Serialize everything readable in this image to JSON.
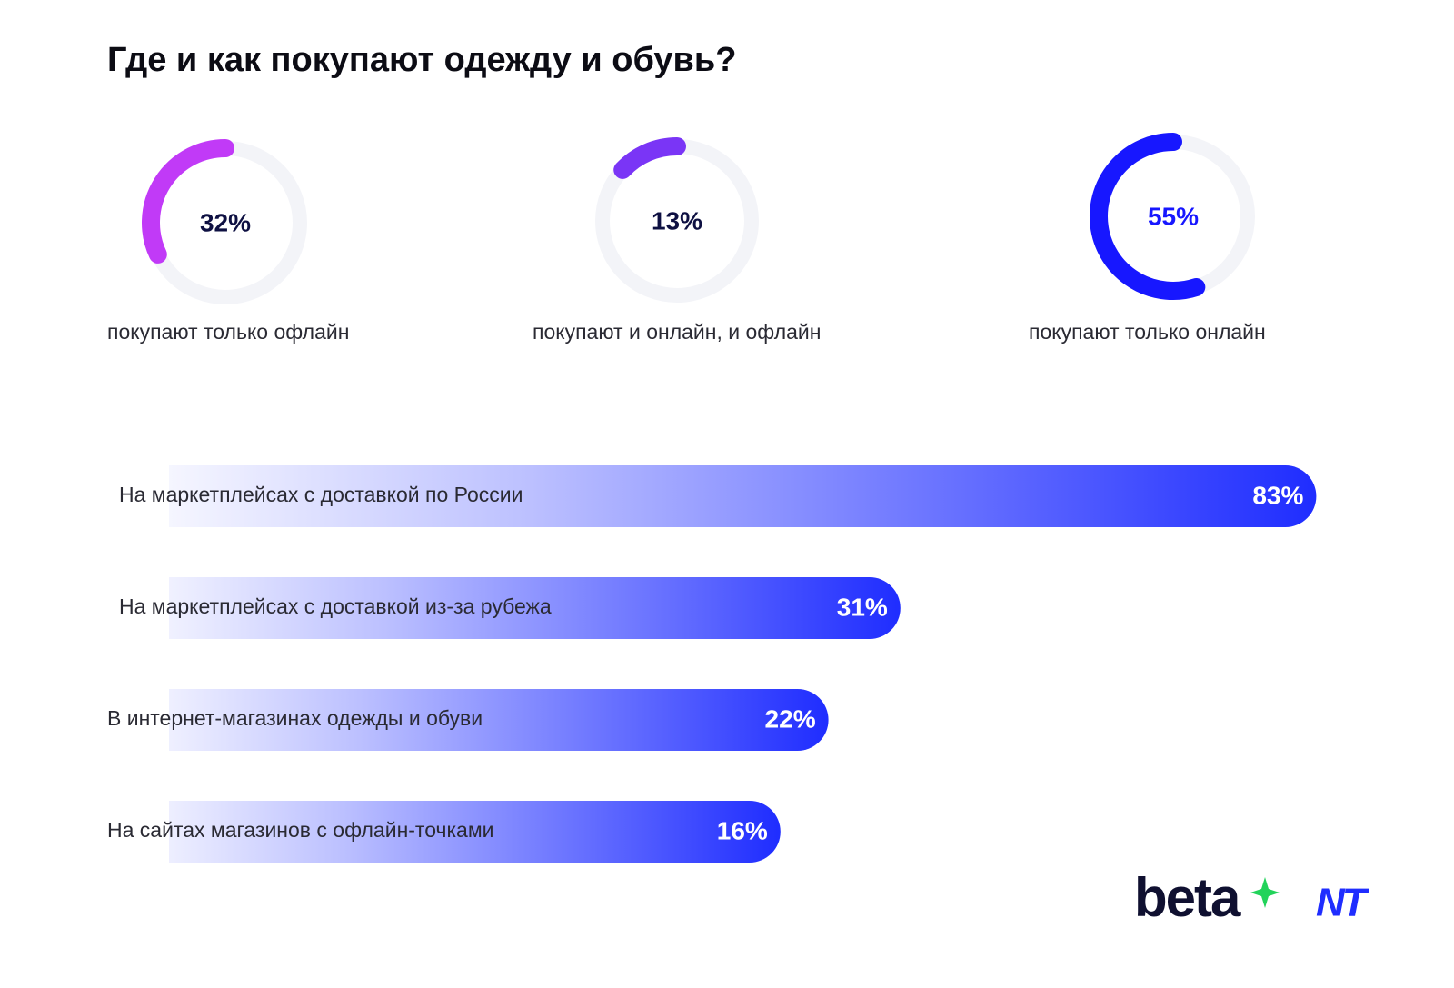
{
  "title": "Где и как покупают одежду и обувь?",
  "chart_data": [
    {
      "type": "donut",
      "categories": [
        "покупают только офлайн",
        "покупают и онлайн, и офлайн",
        "покупают только онлайн"
      ],
      "values": [
        32,
        13,
        55
      ],
      "value_labels": [
        "32%",
        "13%",
        "55%"
      ],
      "colors": [
        "#c13af7",
        "#7a35f6",
        "#1717ff"
      ],
      "track_color": "#f3f4f8"
    },
    {
      "type": "bar",
      "orientation": "horizontal",
      "categories": [
        "На маркетплейсах с доставкой по России",
        "На маркетплейсах с доставкой из-за рубежа",
        "В интернет-магазинах одежды и обуви",
        "На сайтах магазинов с офлайн-точками"
      ],
      "values": [
        83,
        31,
        22,
        16
      ],
      "value_labels": [
        "83%",
        "31%",
        "22%",
        "16%"
      ],
      "color": "#1f2dff"
    }
  ],
  "footer": {
    "logos": [
      "beta",
      "NT"
    ]
  }
}
